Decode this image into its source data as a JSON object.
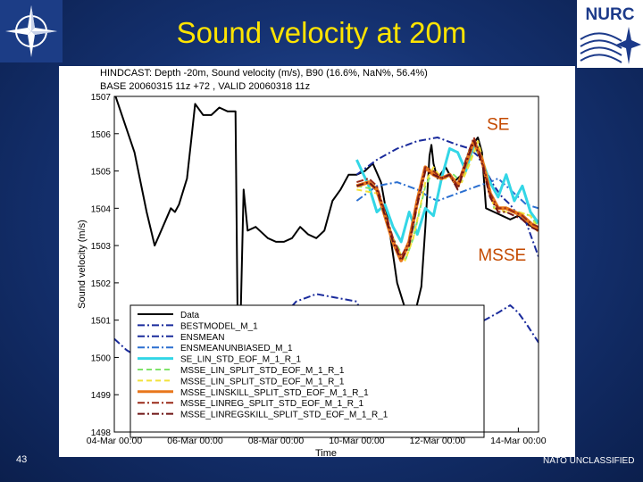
{
  "slide": {
    "title": "Sound velocity at 20m",
    "slide_number": "43",
    "classification": "NATO UNCLASSIFIED",
    "nurc_logo_text": "NURC"
  },
  "chart_data": {
    "type": "line",
    "header_line_1": "HINDCAST: Depth -20m, Sound velocity (m/s), B90   (16.6%, NaN%, 56.4%)",
    "header_line_2": "BASE 20060315 11z +72 , VALID 20060318 11z",
    "xlabel": "Time",
    "ylabel": "Sound velocity (m/s)",
    "xlim": [
      0,
      10.5
    ],
    "ylim": [
      1498,
      1507
    ],
    "x_ticks": [
      0,
      2,
      4,
      6,
      8,
      10
    ],
    "x_tick_labels": [
      "04-Mar 00:00",
      "06-Mar 00:00",
      "08-Mar 00:00",
      "10-Mar 00:00",
      "12-Mar 00:00",
      "14-Mar 00:00"
    ],
    "y_ticks": [
      1498,
      1499,
      1500,
      1501,
      1502,
      1503,
      1504,
      1505,
      1506,
      1507
    ],
    "annotations": [
      {
        "text": "SE",
        "x": 9.5,
        "y": 1506.1,
        "color": "#c44a00"
      },
      {
        "text": "MSSE",
        "x": 9.6,
        "y": 1502.6,
        "color": "#c44a00"
      }
    ],
    "legend_position": "lower-center",
    "series": [
      {
        "name": "Data",
        "color": "#000000",
        "dash": "solid",
        "width": 2,
        "x": [
          0,
          0.5,
          0.8,
          1.0,
          1.2,
          1.4,
          1.5,
          1.6,
          1.8,
          1.9,
          2.0,
          2.2,
          2.4,
          2.6,
          2.8,
          3.0,
          3.06,
          3.1,
          3.2,
          3.3,
          3.5,
          3.8,
          4.0,
          4.2,
          4.4,
          4.6,
          4.8,
          5.0,
          5.2,
          5.4,
          5.6,
          5.8,
          6.0,
          6.2,
          6.4,
          6.6,
          6.8,
          7.0,
          7.2,
          7.4,
          7.6,
          7.7,
          7.8,
          7.85,
          7.9,
          8.0,
          8.2,
          8.4,
          8.6,
          8.8,
          9.0,
          9.1,
          9.2,
          9.4,
          9.6,
          9.8,
          10.0,
          10.2,
          10.5
        ],
        "y": [
          1507.1,
          1505.5,
          1503.9,
          1503.0,
          1503.5,
          1504.0,
          1503.9,
          1504.1,
          1504.8,
          1505.8,
          1506.8,
          1506.5,
          1506.5,
          1506.7,
          1506.6,
          1506.6,
          1500.2,
          1499.8,
          1504.5,
          1503.4,
          1503.5,
          1503.2,
          1503.1,
          1503.1,
          1503.2,
          1503.5,
          1503.3,
          1503.2,
          1503.4,
          1504.2,
          1504.5,
          1504.9,
          1504.9,
          1505.0,
          1505.2,
          1504.7,
          1503.5,
          1502.0,
          1501.3,
          1501.0,
          1501.9,
          1503.5,
          1505.4,
          1505.7,
          1505.2,
          1504.8,
          1505.1,
          1504.7,
          1504.9,
          1505.6,
          1505.9,
          1505.5,
          1504.0,
          1503.9,
          1503.8,
          1503.7,
          1503.8,
          1503.6,
          1503.4
        ]
      },
      {
        "name": "BESTMODEL_M_1",
        "color": "#1a2b9c",
        "dash": "dashdot",
        "width": 2,
        "x": [
          6.0,
          6.5,
          7.0,
          7.5,
          8.0,
          8.5,
          8.8,
          9.0,
          9.2,
          9.4,
          9.6,
          9.8,
          10.0,
          10.2,
          10.5
        ],
        "y": [
          1504.9,
          1505.3,
          1505.6,
          1505.8,
          1505.9,
          1505.7,
          1505.6,
          1505.4,
          1505.0,
          1504.6,
          1504.3,
          1504.1,
          1503.8,
          1503.6,
          1502.7
        ]
      },
      {
        "name": "ENSMEAN",
        "color": "#1a2b9c",
        "dash": "dashdot",
        "width": 2,
        "x": [
          0,
          0.3,
          0.6,
          1.0,
          1.5,
          2.0,
          2.5,
          3.0,
          3.5,
          4.0,
          4.5,
          5.0,
          5.5,
          6.0,
          6.5,
          7.0,
          7.5,
          8.0,
          8.5,
          9.0,
          9.5,
          9.8,
          10.0,
          10.2,
          10.5
        ],
        "y": [
          1500.5,
          1500.2,
          1500.0,
          1500.0,
          1499.9,
          1500.0,
          1500.3,
          1500.5,
          1500.6,
          1500.9,
          1501.5,
          1501.7,
          1501.6,
          1501.5,
          1500.2,
          1500.6,
          1501.0,
          1501.0,
          1500.7,
          1500.9,
          1501.2,
          1501.4,
          1501.2,
          1500.9,
          1500.4
        ]
      },
      {
        "name": "ENSMEANUNBIASED_M_1",
        "color": "#2b6fd0",
        "dash": "dashdot",
        "width": 2,
        "x": [
          6.0,
          6.5,
          7.0,
          7.5,
          7.8,
          8.0,
          8.5,
          9.0,
          9.3,
          9.5,
          9.7,
          10.0,
          10.2,
          10.5
        ],
        "y": [
          1504.2,
          1504.6,
          1504.7,
          1504.5,
          1504.3,
          1504.2,
          1504.4,
          1504.6,
          1504.7,
          1504.8,
          1504.6,
          1504.3,
          1504.1,
          1504.0
        ]
      },
      {
        "name": "SE_LIN_STD_EOF_M_1_R_1",
        "color": "#33d6e6",
        "dash": "solid",
        "width": 3,
        "x": [
          6.0,
          6.3,
          6.5,
          6.7,
          6.9,
          7.1,
          7.3,
          7.5,
          7.7,
          7.9,
          8.1,
          8.3,
          8.5,
          8.7,
          8.9,
          9.1,
          9.3,
          9.5,
          9.7,
          9.9,
          10.1,
          10.3,
          10.5
        ],
        "y": [
          1505.3,
          1504.6,
          1503.9,
          1504.1,
          1503.5,
          1503.1,
          1503.9,
          1503.3,
          1504.0,
          1503.8,
          1504.8,
          1505.6,
          1505.5,
          1505.0,
          1505.7,
          1505.3,
          1504.7,
          1504.3,
          1504.9,
          1504.2,
          1504.6,
          1503.9,
          1503.6
        ]
      },
      {
        "name": "MSSE_LIN_SPLIT_STD_EOF_M_1_R_1",
        "color": "#7fe36a",
        "dash": "dashed",
        "width": 2,
        "x": [
          6.0,
          6.5,
          6.9,
          7.2,
          7.4,
          7.7,
          7.9,
          8.1,
          8.4,
          8.6,
          8.8,
          9.0,
          9.2,
          9.4,
          9.7,
          10.0,
          10.3,
          10.5
        ],
        "y": [
          1504.6,
          1504.5,
          1503.2,
          1502.6,
          1503.2,
          1504.6,
          1505.0,
          1504.8,
          1504.9,
          1504.7,
          1505.3,
          1505.7,
          1505.0,
          1504.0,
          1504.0,
          1503.9,
          1503.8,
          1503.5
        ]
      },
      {
        "name": "MSSE_LIN_SPLIT_STD_EOF_M_1_R_1",
        "color": "#f2e23a",
        "dash": "dashed",
        "width": 2,
        "x": [
          6.0,
          6.5,
          6.9,
          7.2,
          7.4,
          7.7,
          7.9,
          8.1,
          8.4,
          8.6,
          8.8,
          9.0,
          9.2,
          9.4,
          9.7,
          10.0,
          10.3,
          10.5
        ],
        "y": [
          1504.5,
          1504.4,
          1503.1,
          1502.6,
          1503.2,
          1504.7,
          1505.1,
          1504.8,
          1504.8,
          1504.7,
          1505.2,
          1505.8,
          1505.0,
          1504.0,
          1503.9,
          1503.9,
          1503.8,
          1503.4
        ]
      },
      {
        "name": "MSSE_LINSKILL_SPLIT_STD_EOF_M_1_R_1",
        "color": "#e8771c",
        "dash": "solid",
        "width": 4,
        "x": [
          6.0,
          6.3,
          6.5,
          6.7,
          6.9,
          7.1,
          7.3,
          7.5,
          7.7,
          7.9,
          8.1,
          8.3,
          8.5,
          8.7,
          8.9,
          9.1,
          9.3,
          9.5,
          9.7,
          9.9,
          10.1,
          10.3,
          10.5
        ],
        "y": [
          1504.6,
          1504.7,
          1504.5,
          1503.8,
          1503.1,
          1502.6,
          1503.1,
          1504.2,
          1505.1,
          1504.9,
          1504.8,
          1504.9,
          1504.6,
          1505.2,
          1505.8,
          1505.3,
          1504.4,
          1504.0,
          1504.0,
          1503.9,
          1503.8,
          1503.6,
          1503.4
        ]
      },
      {
        "name": "MSSE_LINREG_SPLIT_STD_EOF_M_1_R_1",
        "color": "#9a2a18",
        "dash": "dashdot",
        "width": 2,
        "x": [
          6.0,
          6.3,
          6.5,
          6.7,
          6.9,
          7.1,
          7.3,
          7.5,
          7.7,
          7.9,
          8.1,
          8.3,
          8.5,
          8.7,
          8.9,
          9.1,
          9.3,
          9.5,
          9.7,
          9.9,
          10.1,
          10.3,
          10.5
        ],
        "y": [
          1504.7,
          1504.8,
          1504.6,
          1503.9,
          1503.2,
          1502.7,
          1503.1,
          1504.2,
          1505.1,
          1505.0,
          1504.8,
          1504.9,
          1504.6,
          1505.3,
          1505.9,
          1505.3,
          1504.4,
          1504.0,
          1504.0,
          1503.9,
          1503.8,
          1503.6,
          1503.5
        ]
      },
      {
        "name": "MSSE_LINREGSKILL_SPLIT_STD_EOF_M_1_R_1",
        "color": "#6e1414",
        "dash": "dashdot",
        "width": 2,
        "x": [
          6.0,
          6.3,
          6.5,
          6.7,
          6.9,
          7.1,
          7.3,
          7.5,
          7.7,
          7.9,
          8.1,
          8.3,
          8.5,
          8.7,
          8.9,
          9.1,
          9.3,
          9.5,
          9.7,
          9.9,
          10.1,
          10.3,
          10.5
        ],
        "y": [
          1504.6,
          1504.7,
          1504.5,
          1503.8,
          1503.1,
          1502.6,
          1503.0,
          1504.1,
          1505.0,
          1504.9,
          1504.8,
          1504.9,
          1504.5,
          1505.2,
          1505.8,
          1505.2,
          1504.3,
          1503.9,
          1503.9,
          1503.8,
          1503.7,
          1503.5,
          1503.4
        ]
      }
    ]
  }
}
